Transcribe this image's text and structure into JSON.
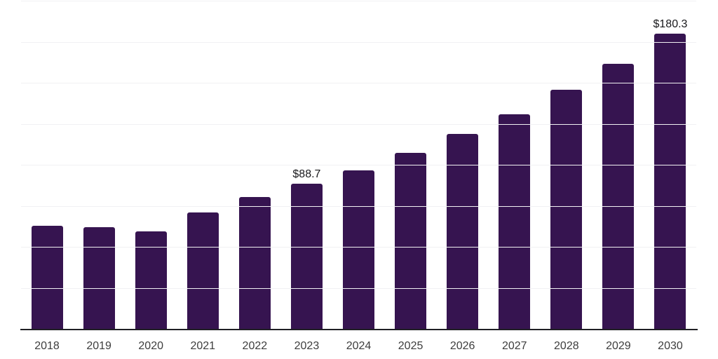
{
  "chart_data": {
    "type": "bar",
    "title": "",
    "xlabel": "",
    "ylabel": "",
    "categories": [
      "2018",
      "2019",
      "2020",
      "2021",
      "2022",
      "2023",
      "2024",
      "2025",
      "2026",
      "2027",
      "2028",
      "2029",
      "2030"
    ],
    "values": [
      63.3,
      62.2,
      60.0,
      71.2,
      80.8,
      88.7,
      97.0,
      107.7,
      119.2,
      131.2,
      146.2,
      162.0,
      180.3
    ],
    "value_labels": {
      "2023": "$88.7",
      "2030": "$180.3"
    },
    "ylim": [
      0,
      200
    ],
    "gridline_interval": 25,
    "grid": "horizontal",
    "legend": "none",
    "y_tick_labels_shown": false,
    "colors": {
      "bar": "#361450",
      "axis_line": "#202025",
      "gridline": "#f1f1f3",
      "x_tick_text": "#3d3d3d",
      "value_label_text": "#18181b",
      "background": "#ffffff"
    }
  }
}
